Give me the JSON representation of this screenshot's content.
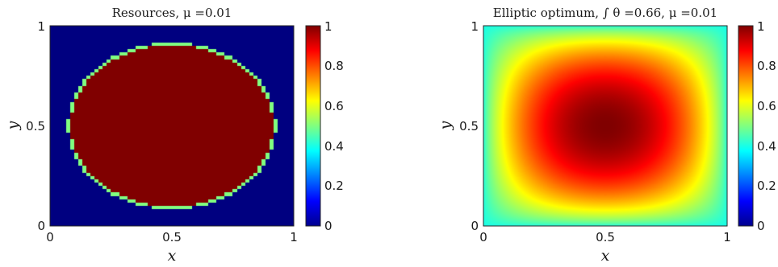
{
  "chart_data": [
    {
      "type": "heatmap",
      "title": "Resources, μ =0.01",
      "xlabel": "x",
      "ylabel": "y",
      "xlim": [
        0,
        1
      ],
      "ylim": [
        0,
        1
      ],
      "xticks": [
        "0",
        "0.5",
        "1"
      ],
      "yticks": [
        "0",
        "0.5",
        "1"
      ],
      "colormap": "jet",
      "clim": [
        0,
        1
      ],
      "colorbar_ticks": [
        "0",
        "0.2",
        "0.4",
        "0.6",
        "0.8",
        "1"
      ],
      "field": {
        "kind": "indicator-ellipse",
        "center": [
          0.5,
          0.5
        ],
        "semi_axes": [
          0.42,
          0.41
        ],
        "inside_value": 1,
        "outside_value": 0
      }
    },
    {
      "type": "heatmap",
      "title": "Elliptic optimum, ∫ θ =0.66, μ =0.01",
      "xlabel": "x",
      "ylabel": "y",
      "xlim": [
        0,
        1
      ],
      "ylim": [
        0,
        1
      ],
      "xticks": [
        "0",
        "0.5",
        "1"
      ],
      "yticks": [
        "0",
        "0.5",
        "1"
      ],
      "colormap": "jet",
      "clim": [
        0,
        1
      ],
      "colorbar_ticks": [
        "0",
        "0.2",
        "0.4",
        "0.6",
        "0.8",
        "1"
      ],
      "field": {
        "kind": "smooth-elliptic",
        "peak": 1,
        "center_value_approx": 1.0,
        "edge_mid_value_approx": 0.45,
        "corner_value_approx": 0.4
      }
    }
  ]
}
